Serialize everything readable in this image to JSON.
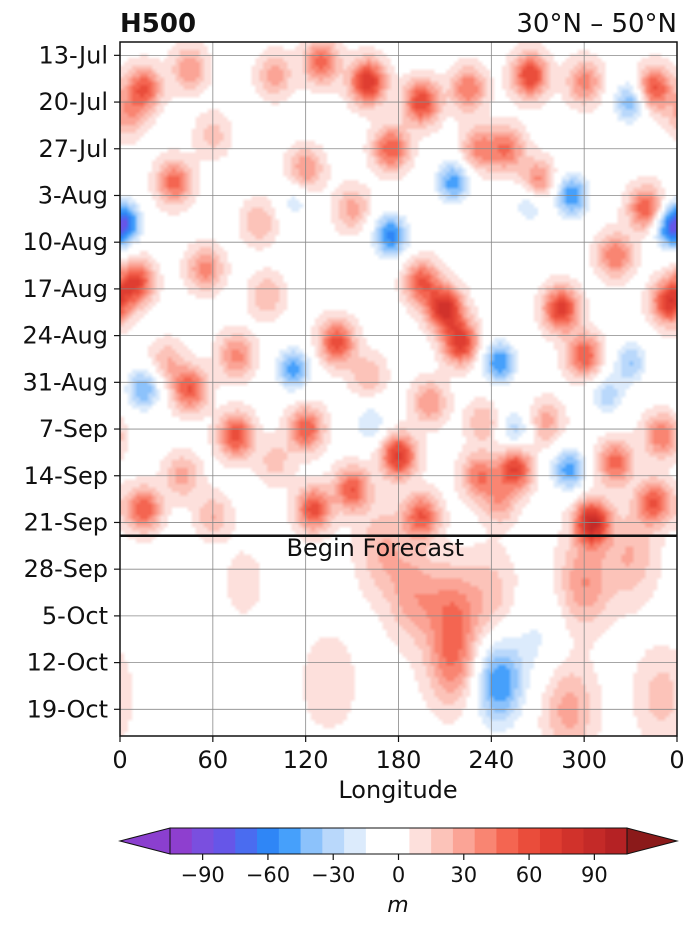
{
  "chart_data": {
    "type": "heatmap",
    "title": "H500",
    "subtitle": "30°N – 50°N",
    "xlabel": "Longitude",
    "x_ticks": [
      "0",
      "60",
      "120",
      "180",
      "240",
      "300",
      "0"
    ],
    "x_range": [
      0,
      360
    ],
    "y_ticks": [
      "13-Jul",
      "20-Jul",
      "27-Jul",
      "3-Aug",
      "10-Aug",
      "17-Aug",
      "24-Aug",
      "31-Aug",
      "7-Sep",
      "14-Sep",
      "21-Sep",
      "28-Sep",
      "5-Oct",
      "12-Oct",
      "19-Oct"
    ],
    "y_range": [
      "2023-07-11",
      "2023-10-23"
    ],
    "grid": true,
    "annotation": {
      "text": "Begin Forecast",
      "date": "2023-09-23"
    },
    "colorbar": {
      "label": "m",
      "ticks": [
        "−90",
        "−60",
        "−30",
        "0",
        "30",
        "60",
        "90"
      ],
      "tick_values": [
        -90,
        -60,
        -30,
        0,
        30,
        60,
        90
      ],
      "range": [
        -105,
        105
      ],
      "levels": [
        -105,
        -95,
        -85,
        -75,
        -65,
        -55,
        -45,
        -35,
        -25,
        -15,
        -5,
        5,
        15,
        25,
        35,
        45,
        55,
        65,
        75,
        85,
        95,
        105
      ],
      "colors": [
        "#8e3fcf",
        "#7a4fdf",
        "#6656e8",
        "#4a6cf0",
        "#2f86f6",
        "#46a0fb",
        "#8cc2fb",
        "#b9d8fb",
        "#dcebfc",
        "#ffffff",
        "#ffffff",
        "#fde0dc",
        "#fcc3b9",
        "#fba496",
        "#f98572",
        "#f46551",
        "#ea4d3b",
        "#df3d31",
        "#d1322b",
        "#c42a28",
        "#b52224"
      ],
      "extend_low": "#8b3fcf",
      "extend_high": "#8b1a1a"
    },
    "anomalies": [
      {
        "lon": 15,
        "date": "2023-07-18",
        "value": 55
      },
      {
        "lon": 45,
        "date": "2023-07-15",
        "value": 35
      },
      {
        "lon": 100,
        "date": "2023-07-16",
        "value": 30
      },
      {
        "lon": 160,
        "date": "2023-07-17",
        "value": 75
      },
      {
        "lon": 130,
        "date": "2023-07-14",
        "value": 50
      },
      {
        "lon": 195,
        "date": "2023-07-20",
        "value": 65
      },
      {
        "lon": 225,
        "date": "2023-07-18",
        "value": 45
      },
      {
        "lon": 265,
        "date": "2023-07-16",
        "value": 65
      },
      {
        "lon": 300,
        "date": "2023-07-17",
        "value": 40
      },
      {
        "lon": 345,
        "date": "2023-07-18",
        "value": 60
      },
      {
        "lon": 330,
        "date": "2023-07-20",
        "value": -45
      },
      {
        "lon": 232,
        "date": "2023-07-27",
        "value": 40
      },
      {
        "lon": 175,
        "date": "2023-07-27",
        "value": 55
      },
      {
        "lon": 250,
        "date": "2023-07-27",
        "value": 45
      },
      {
        "lon": 35,
        "date": "2023-08-01",
        "value": 50
      },
      {
        "lon": 120,
        "date": "2023-07-30",
        "value": 35
      },
      {
        "lon": 270,
        "date": "2023-08-01",
        "value": 45
      },
      {
        "lon": 340,
        "date": "2023-08-05",
        "value": 55
      },
      {
        "lon": 215,
        "date": "2023-08-01",
        "value": -50
      },
      {
        "lon": 292,
        "date": "2023-08-03",
        "value": -55
      },
      {
        "lon": 3,
        "date": "2023-08-07",
        "value": -55
      },
      {
        "lon": 355,
        "date": "2023-08-08",
        "value": -45
      },
      {
        "lon": 175,
        "date": "2023-08-09",
        "value": -60
      },
      {
        "lon": 265,
        "date": "2023-08-04",
        "value": -30
      },
      {
        "lon": 113,
        "date": "2023-08-04",
        "value": -20
      },
      {
        "lon": 210,
        "date": "2023-08-20",
        "value": 80
      },
      {
        "lon": 195,
        "date": "2023-08-16",
        "value": 55
      },
      {
        "lon": 220,
        "date": "2023-08-25",
        "value": 70
      },
      {
        "lon": 285,
        "date": "2023-08-20",
        "value": 70
      },
      {
        "lon": 300,
        "date": "2023-08-27",
        "value": 55
      },
      {
        "lon": 320,
        "date": "2023-08-12",
        "value": 45
      },
      {
        "lon": 10,
        "date": "2023-08-16",
        "value": 65
      },
      {
        "lon": 55,
        "date": "2023-08-14",
        "value": 40
      },
      {
        "lon": 95,
        "date": "2023-08-18",
        "value": 25
      },
      {
        "lon": 140,
        "date": "2023-08-25",
        "value": 60
      },
      {
        "lon": 355,
        "date": "2023-08-19",
        "value": 70
      },
      {
        "lon": 75,
        "date": "2023-08-27",
        "value": 40
      },
      {
        "lon": 45,
        "date": "2023-09-01",
        "value": 55
      },
      {
        "lon": 30,
        "date": "2023-08-28",
        "value": 25
      },
      {
        "lon": 245,
        "date": "2023-08-28",
        "value": -55
      },
      {
        "lon": 112,
        "date": "2023-08-29",
        "value": -50
      },
      {
        "lon": 15,
        "date": "2023-09-01",
        "value": -45
      },
      {
        "lon": 330,
        "date": "2023-08-28",
        "value": -35
      },
      {
        "lon": 315,
        "date": "2023-09-02",
        "value": -30
      },
      {
        "lon": 200,
        "date": "2023-09-03",
        "value": 35
      },
      {
        "lon": 120,
        "date": "2023-09-07",
        "value": 55
      },
      {
        "lon": 75,
        "date": "2023-09-08",
        "value": 60
      },
      {
        "lon": 180,
        "date": "2023-09-11",
        "value": 70
      },
      {
        "lon": 255,
        "date": "2023-09-13",
        "value": 65
      },
      {
        "lon": 320,
        "date": "2023-09-12",
        "value": 50
      },
      {
        "lon": 350,
        "date": "2023-09-08",
        "value": 45
      },
      {
        "lon": 150,
        "date": "2023-09-16",
        "value": 55
      },
      {
        "lon": 195,
        "date": "2023-09-20",
        "value": 55
      },
      {
        "lon": 125,
        "date": "2023-09-19",
        "value": 60
      },
      {
        "lon": 15,
        "date": "2023-09-19",
        "value": 55
      },
      {
        "lon": 40,
        "date": "2023-09-14",
        "value": 30
      },
      {
        "lon": 305,
        "date": "2023-09-21",
        "value": 85
      },
      {
        "lon": 345,
        "date": "2023-09-18",
        "value": 55
      },
      {
        "lon": 232,
        "date": "2023-09-14",
        "value": 45
      },
      {
        "lon": 290,
        "date": "2023-09-13",
        "value": -50
      },
      {
        "lon": 162,
        "date": "2023-09-06",
        "value": -25
      },
      {
        "lon": 255,
        "date": "2023-09-07",
        "value": -30
      },
      {
        "lon": 245,
        "date": "2023-09-18",
        "value": 30
      },
      {
        "lon": 170,
        "date": "2023-09-25",
        "value": 25
      },
      {
        "lon": 215,
        "date": "2023-10-04",
        "value": 35
      },
      {
        "lon": 190,
        "date": "2023-10-02",
        "value": 30
      },
      {
        "lon": 300,
        "date": "2023-09-30",
        "value": 35
      },
      {
        "lon": 330,
        "date": "2023-09-26",
        "value": 25
      },
      {
        "lon": 240,
        "date": "2023-10-02",
        "value": 20
      },
      {
        "lon": 135,
        "date": "2023-10-15",
        "value": 15
      },
      {
        "lon": 245,
        "date": "2023-10-15",
        "value": -55
      },
      {
        "lon": 215,
        "date": "2023-10-12",
        "value": 40
      },
      {
        "lon": 290,
        "date": "2023-10-19",
        "value": 30
      },
      {
        "lon": 350,
        "date": "2023-10-17",
        "value": 20
      },
      {
        "lon": 270,
        "date": "2023-10-08",
        "value": -15
      },
      {
        "lon": 80,
        "date": "2023-09-30",
        "value": 8
      },
      {
        "lon": 5,
        "date": "2023-07-22",
        "value": 30
      },
      {
        "lon": 60,
        "date": "2023-07-25",
        "value": 20
      },
      {
        "lon": 90,
        "date": "2023-08-07",
        "value": 25
      },
      {
        "lon": 150,
        "date": "2023-08-05",
        "value": 30
      },
      {
        "lon": 160,
        "date": "2023-08-30",
        "value": 25
      },
      {
        "lon": 100,
        "date": "2023-09-12",
        "value": 20
      },
      {
        "lon": 235,
        "date": "2023-09-06",
        "value": 25
      },
      {
        "lon": 275,
        "date": "2023-09-06",
        "value": 30
      },
      {
        "lon": 60,
        "date": "2023-09-20",
        "value": 25
      }
    ]
  }
}
